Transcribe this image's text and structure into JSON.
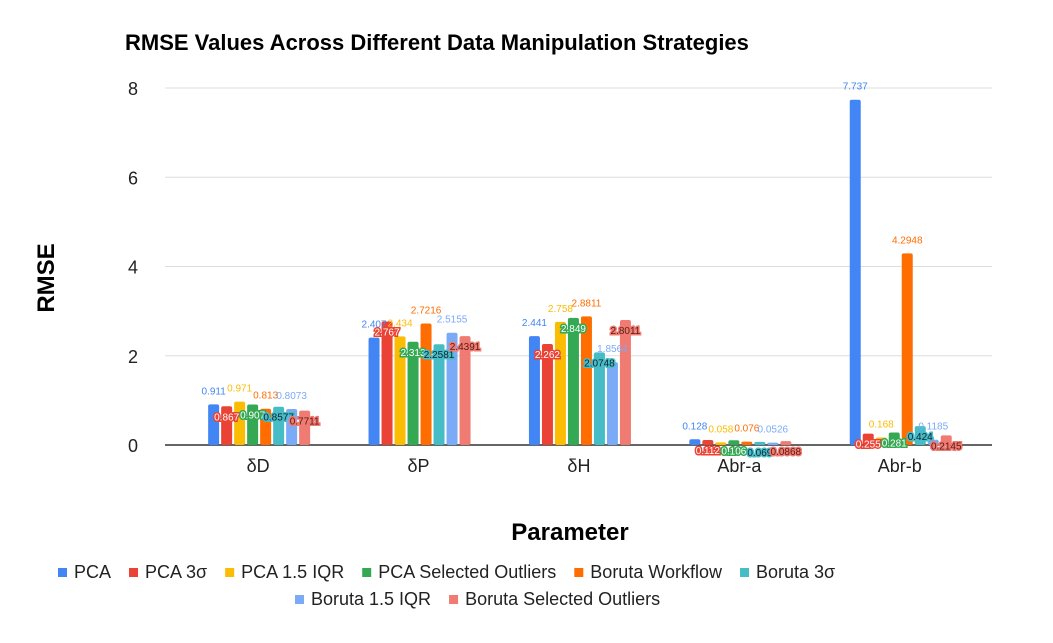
{
  "chart_data": {
    "type": "bar",
    "title": "RMSE Values Across Different Data Manipulation Strategies",
    "xlabel": "Parameter",
    "ylabel": "RMSE",
    "ylim": [
      0,
      8
    ],
    "yticks": [
      "0",
      "2",
      "4",
      "6",
      "8"
    ],
    "grid": true,
    "legend_placement": "bottom",
    "categories": [
      "δD",
      "δP",
      "δH",
      "Abr-a",
      "Abr-b"
    ],
    "series": [
      {
        "name": "PCA",
        "color": "#4285f4",
        "values": [
          0.911,
          2.407,
          2.441,
          0.128,
          7.737
        ],
        "labels": [
          "0.911",
          "2.407",
          "2.441",
          "0.128",
          "7.737"
        ]
      },
      {
        "name": "PCA 3σ",
        "color": "#ea4335",
        "values": [
          0.867,
          2.767,
          2.262,
          0.112,
          0.255
        ],
        "labels": [
          "0.867",
          "2.767",
          "2.262",
          "0.112",
          "0.255"
        ]
      },
      {
        "name": "PCA 1.5 IQR",
        "color": "#fbbc04",
        "values": [
          0.971,
          2.434,
          2.758,
          0.058,
          0.168
        ],
        "labels": [
          "0.971",
          "2.434",
          "2.758",
          "0.058",
          "0.168"
        ]
      },
      {
        "name": "PCA Selected Outliers",
        "color": "#34a853",
        "values": [
          0.907,
          2.313,
          2.849,
          0.106,
          0.281
        ],
        "labels": [
          "0.907",
          "2.313",
          "2.849",
          "0.106",
          "0.281"
        ]
      },
      {
        "name": "Boruta Workflow",
        "color": "#ff6d01",
        "values": [
          0.813,
          2.7216,
          2.8811,
          0.076,
          4.2948
        ],
        "labels": [
          "0.813",
          "2.7216",
          "2.8811",
          "0.076",
          "4.2948"
        ]
      },
      {
        "name": "Boruta 3σ",
        "color": "#46bdc6",
        "values": [
          0.8577,
          2.2581,
          2.0748,
          0.069,
          0.424
        ],
        "labels": [
          "0.8577",
          "2.2581",
          "2.0748",
          "0.069",
          "0.424"
        ]
      },
      {
        "name": "Boruta 1.5 IQR",
        "color": "#7baaf7",
        "values": [
          0.8073,
          2.5155,
          1.8564,
          0.0526,
          0.1185
        ],
        "labels": [
          "0.8073",
          "2.5155",
          "1.8564",
          "0.0526",
          "0.1185"
        ]
      },
      {
        "name": "Boruta Selected Outliers",
        "color": "#f07b72",
        "values": [
          0.7711,
          2.4391,
          2.8011,
          0.0868,
          0.2145
        ],
        "labels": [
          "0.7711",
          "2.4391",
          "2.8011",
          "0.0868",
          "0.2145"
        ]
      }
    ]
  }
}
